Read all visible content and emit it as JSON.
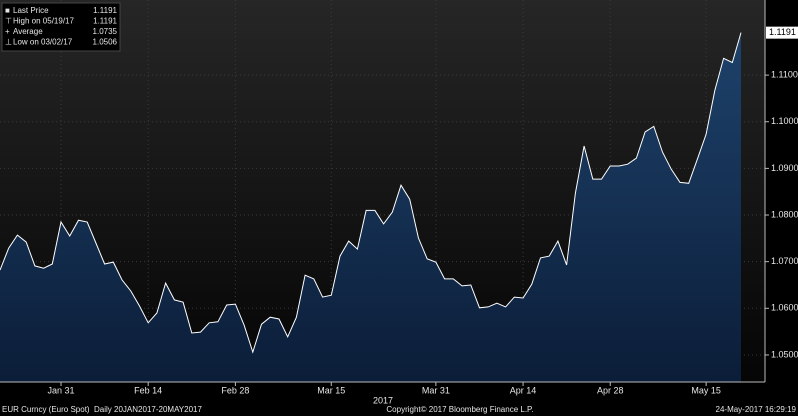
{
  "chart_data": {
    "type": "area",
    "categories": [
      null,
      null,
      null,
      null,
      null,
      null,
      null,
      "Jan 31",
      null,
      null,
      null,
      null,
      null,
      null,
      null,
      null,
      null,
      "Feb 14",
      null,
      null,
      null,
      null,
      null,
      null,
      null,
      null,
      null,
      "Feb 28",
      null,
      null,
      null,
      null,
      null,
      null,
      null,
      null,
      null,
      null,
      "Mar 15",
      null,
      null,
      null,
      null,
      null,
      null,
      null,
      null,
      null,
      null,
      null,
      "Mar 31",
      null,
      null,
      null,
      null,
      null,
      null,
      null,
      null,
      null,
      "Apr 14",
      null,
      null,
      null,
      null,
      null,
      null,
      null,
      null,
      null,
      "Apr 28",
      null,
      null,
      null,
      null,
      null,
      null,
      null,
      null,
      null,
      null,
      "May 15",
      null,
      null,
      null,
      null
    ],
    "x_label": "2017",
    "series": [
      {
        "name": "Last Price",
        "color": "#ffffff",
        "fill": "#143156",
        "values": [
          1.0682,
          1.0729,
          1.0757,
          1.0742,
          1.0691,
          1.0686,
          1.0695,
          1.0785,
          1.0755,
          1.0789,
          1.0785,
          1.074,
          1.0695,
          1.0699,
          1.0661,
          1.0637,
          1.0605,
          1.0569,
          1.059,
          1.0654,
          1.0618,
          1.0613,
          1.0547,
          1.0549,
          1.0569,
          1.0571,
          1.0607,
          1.0609,
          1.0564,
          1.0506,
          1.0566,
          1.0581,
          1.0577,
          1.0539,
          1.0581,
          1.0671,
          1.0663,
          1.0624,
          1.0628,
          1.0712,
          1.0744,
          1.0727,
          1.081,
          1.081,
          1.0781,
          1.0806,
          1.0864,
          1.0834,
          1.0751,
          1.0706,
          1.0699,
          1.0663,
          1.0663,
          1.0648,
          1.065,
          1.0601,
          1.0603,
          1.0611,
          1.0603,
          1.0624,
          1.0622,
          1.0652,
          1.0708,
          1.0712,
          1.0744,
          1.0693,
          1.0847,
          1.0948,
          1.0877,
          1.0877,
          1.0905,
          1.0905,
          1.0909,
          1.0922,
          1.0978,
          1.099,
          1.0935,
          1.0898,
          1.087,
          1.0868,
          1.092,
          1.0973,
          1.1067,
          1.1136,
          1.1127,
          1.1191
        ]
      }
    ],
    "ylim": [
      1.0442,
      1.1261
    ],
    "yticks": [
      {
        "value": 1.05,
        "label": "1.0500"
      },
      {
        "value": 1.06,
        "label": "1.0600"
      },
      {
        "value": 1.07,
        "label": "1.0700"
      },
      {
        "value": 1.08,
        "label": "1.0800"
      },
      {
        "value": 1.09,
        "label": "1.0900"
      },
      {
        "value": 1.1,
        "label": "1.1000"
      },
      {
        "value": 1.11,
        "label": "1.1100"
      }
    ],
    "grid": true,
    "legend": [
      {
        "label": "Last Price",
        "value": 1.1191
      },
      {
        "label": "High on 05/19/17",
        "value": 1.1191
      },
      {
        "label": "Average",
        "value": 1.0735
      },
      {
        "label": "Low on 03/02/17",
        "value": 1.0506
      }
    ],
    "footer": {
      "left": "EUR Curncy (Euro Spot)  Daily 20JAN2017-20MAY2017",
      "center": "Copyright© 2017 Bloomberg Finance L.P.",
      "right": "24-May-2017 16:29:19"
    }
  }
}
